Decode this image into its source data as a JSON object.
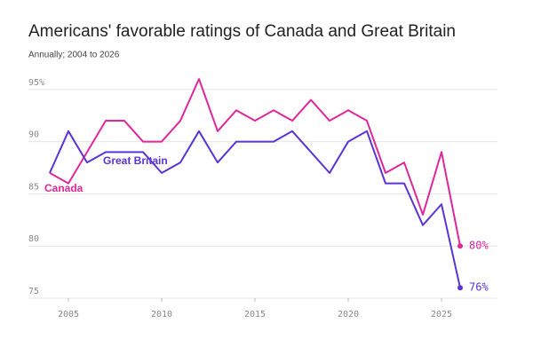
{
  "chart_data": {
    "type": "line",
    "title": "Americans' favorable ratings of Canada and Great Britain",
    "subtitle": "Annually; 2004 to 2026",
    "x": [
      2004,
      2005,
      2006,
      2007,
      2008,
      2009,
      2010,
      2011,
      2012,
      2013,
      2014,
      2015,
      2016,
      2017,
      2018,
      2019,
      2020,
      2021,
      2022,
      2023,
      2024,
      2025,
      2026
    ],
    "series": [
      {
        "name": "Canada",
        "color": "#e0279a",
        "values": [
          87,
          86,
          89,
          92,
          92,
          90,
          90,
          92,
          96,
          91,
          93,
          92,
          93,
          92,
          94,
          92,
          93,
          92,
          87,
          88,
          83,
          89,
          80
        ],
        "value_labels": [
          null,
          null,
          null,
          null,
          null,
          null,
          null,
          null,
          null,
          null,
          null,
          null,
          null,
          null,
          null,
          null,
          null,
          null,
          null,
          null,
          null,
          null,
          "80%"
        ]
      },
      {
        "name": "Great Britain",
        "color": "#5b33d6",
        "values": [
          87,
          91,
          88,
          89,
          89,
          89,
          87,
          88,
          91,
          88,
          90,
          90,
          90,
          91,
          89,
          87,
          90,
          91,
          86,
          86,
          82,
          84,
          76
        ],
        "value_labels": [
          null,
          null,
          null,
          null,
          null,
          null,
          null,
          null,
          null,
          null,
          null,
          null,
          null,
          null,
          null,
          null,
          null,
          null,
          null,
          null,
          null,
          null,
          "76%"
        ]
      }
    ],
    "xlim": [
      2004,
      2026
    ],
    "xticks": [
      2005,
      2010,
      2015,
      2020,
      2025
    ],
    "ylim": [
      75,
      96
    ],
    "yticks": [
      75,
      80,
      85,
      90,
      {
        "value": 95,
        "label": "95%"
      }
    ],
    "grid": true
  }
}
